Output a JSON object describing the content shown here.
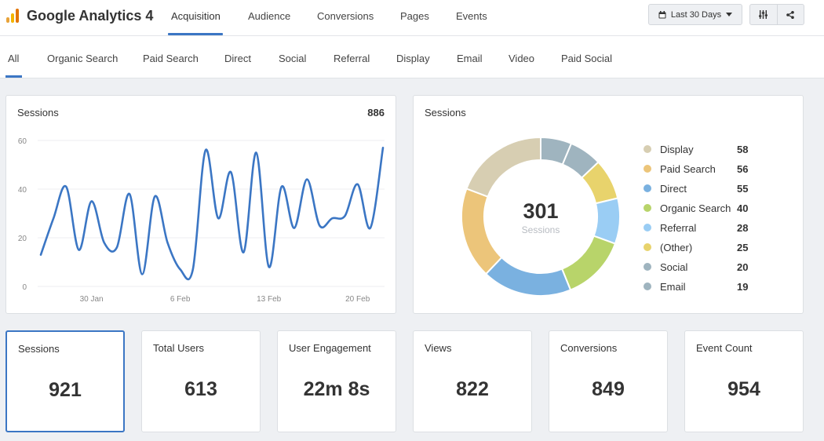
{
  "app": {
    "title": "Google Analytics 4"
  },
  "colors": {
    "accent": "#3b76c4",
    "line": "#3b76c4"
  },
  "main_tabs": [
    {
      "label": "Acquisition",
      "active": true
    },
    {
      "label": "Audience"
    },
    {
      "label": "Conversions"
    },
    {
      "label": "Pages"
    },
    {
      "label": "Events"
    }
  ],
  "toolbar": {
    "date_range": "Last 30 Days",
    "icons": [
      "calendar-icon",
      "caret-down-icon",
      "sliders-icon",
      "share-icon"
    ]
  },
  "sub_tabs": [
    {
      "label": "All",
      "active": true
    },
    {
      "label": "Organic Search"
    },
    {
      "label": "Paid Search"
    },
    {
      "label": "Direct"
    },
    {
      "label": "Social"
    },
    {
      "label": "Referral"
    },
    {
      "label": "Display"
    },
    {
      "label": "Email"
    },
    {
      "label": "Video"
    },
    {
      "label": "Paid Social"
    }
  ],
  "line_card": {
    "title": "Sessions",
    "total": "886"
  },
  "donut_card": {
    "title": "Sessions",
    "center_value": "301",
    "center_label": "Sessions"
  },
  "chart_data": [
    {
      "type": "line",
      "title": "Sessions",
      "x_ticks": [
        "30 Jan",
        "6 Feb",
        "13 Feb",
        "20 Feb"
      ],
      "x_tick_index": [
        4,
        11,
        18,
        25
      ],
      "y_ticks": [
        "0",
        "20",
        "40",
        "60"
      ],
      "ylim": [
        0,
        60
      ],
      "grid": true,
      "series": [
        {
          "values": [
            13,
            28,
            41,
            15,
            35,
            18,
            16,
            38,
            5,
            37,
            18,
            7,
            7,
            56,
            28,
            47,
            14,
            55,
            8,
            41,
            24,
            44,
            25,
            28,
            29,
            42,
            24,
            57
          ]
        }
      ]
    },
    {
      "type": "pie",
      "title": "Sessions",
      "segments": [
        {
          "value": 19,
          "color": "#9fb4bf"
        },
        {
          "value": 20,
          "color": "#9fb4bf"
        },
        {
          "value": 25,
          "color": "#e8d36c"
        },
        {
          "value": 28,
          "color": "#9acdf4"
        },
        {
          "value": 40,
          "color": "#b8d46a"
        },
        {
          "value": 55,
          "color": "#7ab1e0"
        },
        {
          "value": 56,
          "color": "#ecc57a"
        },
        {
          "value": 58,
          "color": "#d7ceb2"
        }
      ],
      "legend": [
        {
          "label": "Display",
          "value": "58",
          "color": "#d7ceb2"
        },
        {
          "label": "Paid Search",
          "value": "56",
          "color": "#ecc57a"
        },
        {
          "label": "Direct",
          "value": "55",
          "color": "#7ab1e0"
        },
        {
          "label": "Organic Search",
          "value": "40",
          "color": "#b8d46a"
        },
        {
          "label": "Referral",
          "value": "28",
          "color": "#9acdf4"
        },
        {
          "label": "(Other)",
          "value": "25",
          "color": "#e8d36c"
        },
        {
          "label": "Social",
          "value": "20",
          "color": "#9fb4bf"
        },
        {
          "label": "Email",
          "value": "19",
          "color": "#9fb4bf"
        }
      ]
    }
  ],
  "kpis": [
    {
      "label": "Sessions",
      "value": "921",
      "selected": true
    },
    {
      "label": "Total Users",
      "value": "613"
    },
    {
      "label": "User Engagement",
      "value": "22m 8s"
    },
    {
      "label": "Views",
      "value": "822"
    },
    {
      "label": "Conversions",
      "value": "849"
    },
    {
      "label": "Event Count",
      "value": "954"
    }
  ]
}
